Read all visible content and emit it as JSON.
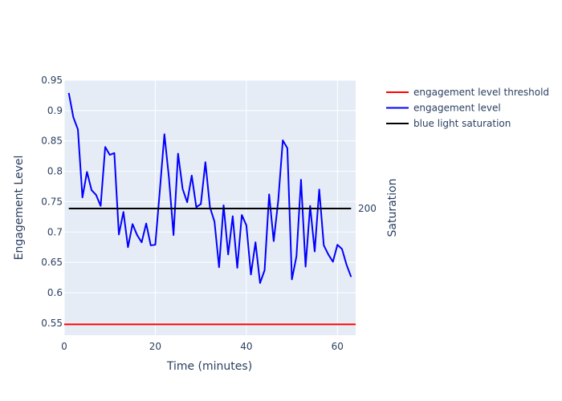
{
  "chart_data": {
    "type": "line",
    "title": "",
    "xlabel": "Time (minutes)",
    "ylabel": "Engagement Level",
    "y2label": "Saturation",
    "xlim": [
      0,
      64
    ],
    "ylim": [
      0.53,
      0.95
    ],
    "x_ticks": [
      0,
      20,
      40,
      60
    ],
    "y_ticks": [
      "0.55",
      "0.6",
      "0.65",
      "0.7",
      "0.75",
      "0.8",
      "0.85",
      "0.9",
      "0.95"
    ],
    "y2_ticks": [
      "200"
    ],
    "grid": true,
    "legend_placement": "top-right, outside plot",
    "plot_background": "#e5ecf6",
    "series": [
      {
        "name": "engagement level threshold",
        "color": "#ff0000",
        "axis": "y",
        "x": [
          0,
          64
        ],
        "y": [
          0.548,
          0.548
        ]
      },
      {
        "name": "engagement level",
        "color": "#0000ff",
        "axis": "y",
        "x": [
          1,
          2,
          3,
          4,
          5,
          6,
          7,
          8,
          9,
          10,
          11,
          12,
          13,
          14,
          15,
          16,
          17,
          18,
          19,
          20,
          21,
          22,
          23,
          24,
          25,
          26,
          27,
          28,
          29,
          30,
          31,
          32,
          33,
          34,
          35,
          36,
          37,
          38,
          39,
          40,
          41,
          42,
          43,
          44,
          45,
          46,
          47,
          48,
          49,
          50,
          51,
          52,
          53,
          54,
          55,
          56,
          57,
          58,
          59,
          60,
          61,
          62,
          63
        ],
        "y": [
          0.929,
          0.889,
          0.869,
          0.757,
          0.799,
          0.769,
          0.761,
          0.743,
          0.84,
          0.827,
          0.83,
          0.696,
          0.733,
          0.675,
          0.713,
          0.695,
          0.683,
          0.714,
          0.678,
          0.679,
          0.769,
          0.861,
          0.789,
          0.695,
          0.829,
          0.771,
          0.749,
          0.793,
          0.741,
          0.746,
          0.815,
          0.741,
          0.717,
          0.642,
          0.744,
          0.663,
          0.726,
          0.641,
          0.728,
          0.711,
          0.63,
          0.683,
          0.616,
          0.637,
          0.762,
          0.685,
          0.752,
          0.851,
          0.838,
          0.622,
          0.66,
          0.786,
          0.643,
          0.743,
          0.668,
          0.77,
          0.678,
          0.663,
          0.651,
          0.679,
          0.672,
          0.646,
          0.626
        ]
      },
      {
        "name": "blue light saturation",
        "color": "#000000",
        "axis": "y2",
        "x": [
          1,
          63
        ],
        "y": [
          200,
          200
        ]
      }
    ]
  }
}
